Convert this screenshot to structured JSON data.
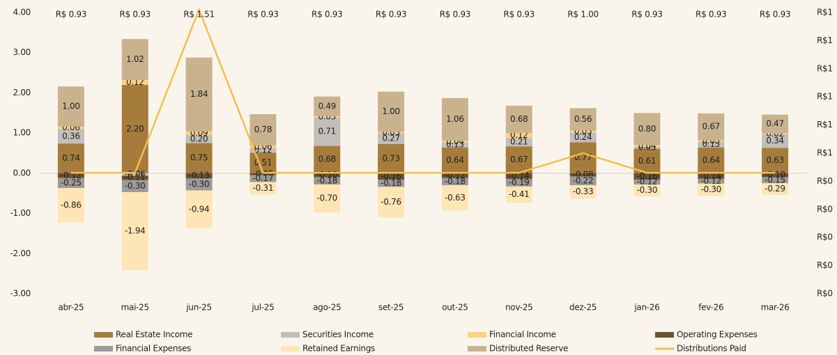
{
  "chart_data": {
    "type": "bar",
    "categories": [
      "abr-25",
      "mai-25",
      "jun-25",
      "jul-25",
      "ago-25",
      "set-25",
      "out-25",
      "nov-25",
      "dez-25",
      "jan-26",
      "fev-26",
      "mar-26"
    ],
    "ylim": [
      -3,
      4
    ],
    "yticks": [
      {
        "value": 4,
        "label": "4.00"
      },
      {
        "value": 3,
        "label": "3.00"
      },
      {
        "value": 2,
        "label": "2.00"
      },
      {
        "value": 1,
        "label": "1.00"
      },
      {
        "value": 0,
        "label": "0.00"
      },
      {
        "value": -1,
        "label": "-1.00"
      },
      {
        "value": -2,
        "label": "-2.00"
      },
      {
        "value": -3,
        "label": "-3.00"
      }
    ],
    "y2lim": [
      0.5,
      1.5
    ],
    "y2ticks": [
      {
        "value": 1.5,
        "label": "R$1"
      },
      {
        "value": 1.4,
        "label": "R$1"
      },
      {
        "value": 1.3,
        "label": "R$1"
      },
      {
        "value": 1.2,
        "label": "R$1"
      },
      {
        "value": 1.1,
        "label": "R$1"
      },
      {
        "value": 1.0,
        "label": "R$1"
      },
      {
        "value": 0.9,
        "label": "R$0"
      },
      {
        "value": 0.8,
        "label": "R$0"
      },
      {
        "value": 0.7,
        "label": "R$0"
      },
      {
        "value": 0.6,
        "label": "R$0"
      },
      {
        "value": 0.5,
        "label": "R$0"
      }
    ],
    "series": [
      {
        "name": "Real Estate Income",
        "color": "#a67c3d",
        "values": [
          0.74,
          2.2,
          0.75,
          0.51,
          0.68,
          0.73,
          0.64,
          0.67,
          0.77,
          0.61,
          0.64,
          0.63
        ],
        "value_labels": [
          "0.74",
          "2.20",
          "0.75",
          "0.51",
          "0.68",
          "0.73",
          "0.64",
          "0.67",
          "0.77",
          "0.61",
          "0.64",
          "0.63"
        ]
      },
      {
        "name": "Securities Income",
        "color": "#c2bfba",
        "values": [
          0.36,
          -0.06,
          0.2,
          0.12,
          0.71,
          0.27,
          0.13,
          0.21,
          0.24,
          0.05,
          0.15,
          0.34
        ],
        "value_labels": [
          "0.36",
          "-0.06",
          "0.20",
          "0.12",
          "0.71",
          "0.27",
          "0.13",
          "0.21",
          "0.24",
          "0.05",
          "0.15",
          "0.34"
        ]
      },
      {
        "name": "Financial Income",
        "color": "#fcd27f",
        "values": [
          0.06,
          0.12,
          0.09,
          0.06,
          0.03,
          0.03,
          0.04,
          0.12,
          0.05,
          0.04,
          0.03,
          0.02
        ],
        "value_labels": [
          "0.06",
          "0.12",
          "0.09",
          "0.06",
          "0.03",
          "0.03",
          "0.04",
          "0.12",
          "0.05",
          "0.04",
          "0.03",
          "0.02"
        ]
      },
      {
        "name": "Operating Expenses",
        "color": "#6b5230",
        "values": [
          -0.12,
          -0.11,
          -0.13,
          -0.05,
          -0.1,
          -0.16,
          -0.12,
          -0.14,
          -0.08,
          -0.16,
          -0.14,
          -0.1
        ],
        "value_labels": [
          "-0.12",
          "-0.11",
          "-0.13",
          "-0.05",
          "-0.10",
          "-0.16",
          "-0.12",
          "-0.14",
          "-0.08",
          "-0.16",
          "-0.14",
          "-0.10"
        ]
      },
      {
        "name": "Financial Expenses",
        "color": "#9d9b98",
        "values": [
          -0.25,
          -0.3,
          -0.3,
          -0.17,
          -0.18,
          -0.18,
          -0.18,
          -0.19,
          -0.22,
          -0.12,
          -0.12,
          -0.15
        ],
        "value_labels": [
          "-0.25",
          "-0.30",
          "-0.30",
          "-0.17",
          "-0.18",
          "-0.18",
          "-0.18",
          "-0.19",
          "-0.22",
          "-0.12",
          "-0.12",
          "-0.15"
        ]
      },
      {
        "name": "Retained Earnings",
        "color": "#fde5b5",
        "values": [
          -0.86,
          -1.94,
          -0.94,
          -0.31,
          -0.7,
          -0.76,
          -0.63,
          -0.41,
          -0.33,
          -0.3,
          -0.3,
          -0.29
        ],
        "value_labels": [
          "-0.86",
          "-1.94",
          "-0.94",
          "-0.31",
          "-0.70",
          "-0.76",
          "-0.63",
          "-0.41",
          "-0.33",
          "-0.30",
          "-0.30",
          "-0.29"
        ]
      },
      {
        "name": "Distributed Reserve",
        "color": "#c9b38f",
        "values": [
          1.0,
          1.02,
          1.84,
          0.78,
          0.49,
          1.0,
          1.06,
          0.68,
          0.56,
          0.8,
          0.67,
          0.47
        ],
        "value_labels": [
          "1.00",
          "1.02",
          "1.84",
          "0.78",
          "0.49",
          "1.00",
          "1.06",
          "0.68",
          "0.56",
          "0.80",
          "0.67",
          "0.47"
        ]
      },
      {
        "name": "Distributions Paid",
        "color": "#f5be4d",
        "type": "line",
        "axis": "y2",
        "values": [
          0.93,
          0.93,
          1.51,
          0.93,
          0.93,
          0.93,
          0.93,
          0.93,
          1.0,
          0.93,
          0.93,
          0.93
        ],
        "value_labels": [
          "R$ 0.93",
          "R$ 0.93",
          "R$ 1.51",
          "R$ 0.93",
          "R$ 0.93",
          "R$ 0.93",
          "R$ 0.93",
          "R$ 0.93",
          "R$ 1.00",
          "R$ 0.93",
          "R$ 0.93",
          "R$ 0.93"
        ]
      }
    ]
  }
}
